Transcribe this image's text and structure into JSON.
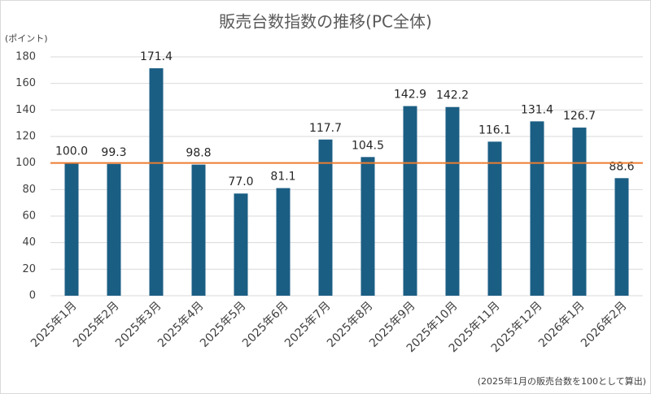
{
  "chart_data": {
    "type": "bar",
    "title": "販売台数指数の推移(PC全体)",
    "y_label": "(ポイント)",
    "footnote": "(2025年1月の販売台数を100として算出)",
    "categories": [
      "2025年1月",
      "2025年2月",
      "2025年3月",
      "2025年4月",
      "2025年5月",
      "2025年6月",
      "2025年7月",
      "2025年8月",
      "2025年9月",
      "2025年10月",
      "2025年11月",
      "2025年12月",
      "2026年1月",
      "2026年2月"
    ],
    "values": [
      100,
      99.3,
      171.4,
      98.8,
      77,
      81.1,
      117.7,
      104.5,
      142.9,
      142.2,
      116.1,
      131.4,
      126.7,
      88.6
    ],
    "value_labels": [
      "100.0",
      "99.3",
      "171.4",
      "98.8",
      "77.0",
      "81.1",
      "117.7",
      "104.5",
      "142.9",
      "142.2",
      "116.1",
      "131.4",
      "126.7",
      "88.6"
    ],
    "color": "#1b5e84",
    "reference_line": {
      "value": 100,
      "color": "#ed7d31"
    },
    "ylim": [
      0,
      180
    ],
    "yticks": [
      0,
      20,
      40,
      60,
      80,
      100,
      120,
      140,
      160,
      180
    ],
    "grid": true
  }
}
